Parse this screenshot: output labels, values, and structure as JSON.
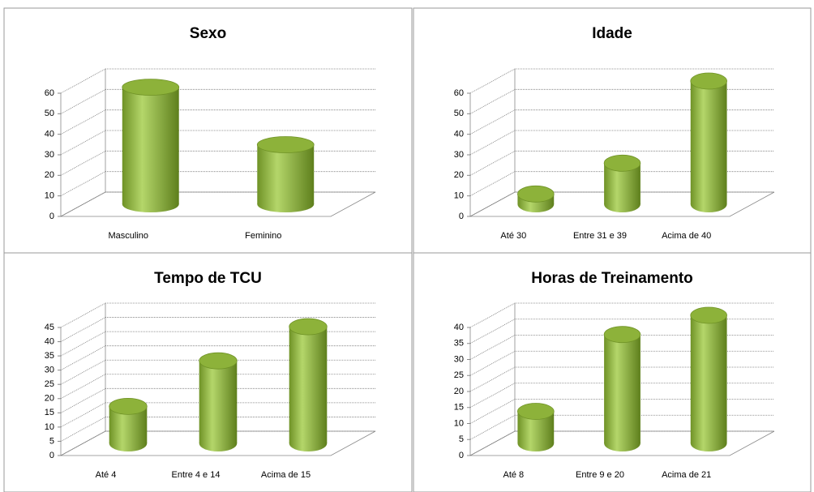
{
  "chart_data": [
    {
      "type": "bar",
      "title": "Sexo",
      "categories": [
        "Masculino",
        "Feminino"
      ],
      "values": [
        57,
        29
      ],
      "color": "#8db23a",
      "ylim": [
        0,
        60
      ],
      "yticks": [
        0,
        10,
        20,
        30,
        40,
        50,
        60
      ],
      "grid": true
    },
    {
      "type": "bar",
      "title": "Idade",
      "categories": [
        "Até 30",
        "Entre 31 e 39",
        "Acima de 40"
      ],
      "values": [
        5,
        20,
        60
      ],
      "color": "#8db23a",
      "ylim": [
        0,
        60
      ],
      "yticks": [
        0,
        10,
        20,
        30,
        40,
        50,
        60
      ],
      "grid": true
    },
    {
      "type": "bar",
      "title": "Tempo de TCU",
      "categories": [
        "Até 4",
        "Entre 4 e 14",
        "Acima de 15"
      ],
      "values": [
        13,
        29,
        41
      ],
      "color": "#8db23a",
      "ylim": [
        0,
        45
      ],
      "yticks": [
        0,
        5,
        10,
        15,
        20,
        25,
        30,
        35,
        40,
        45
      ],
      "grid": true
    },
    {
      "type": "bar",
      "title": "Horas de Treinamento",
      "categories": [
        "Até 8",
        "Entre 9 e 20",
        "Acima de 21"
      ],
      "values": [
        10,
        34,
        40
      ],
      "color": "#8db23a",
      "ylim": [
        0,
        40
      ],
      "yticks": [
        0,
        5,
        10,
        15,
        20,
        25,
        30,
        35,
        40
      ],
      "grid": true
    }
  ]
}
